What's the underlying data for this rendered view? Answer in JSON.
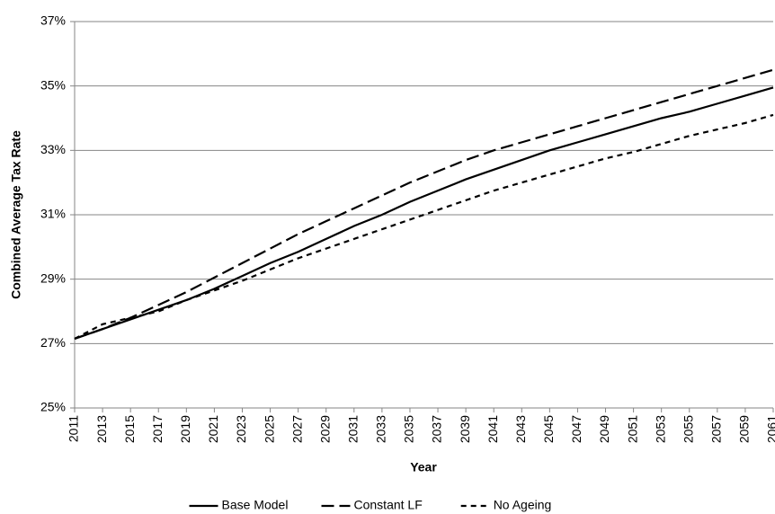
{
  "chart_data": {
    "type": "line",
    "x_label": "Year",
    "y_label": "Combined Average Tax Rate",
    "x": [
      2011,
      2013,
      2015,
      2017,
      2019,
      2021,
      2023,
      2025,
      2027,
      2029,
      2031,
      2033,
      2035,
      2037,
      2039,
      2041,
      2043,
      2045,
      2047,
      2049,
      2051,
      2053,
      2055,
      2057,
      2059,
      2061
    ],
    "xlim": [
      2011,
      2061
    ],
    "xticks": [
      2011,
      2013,
      2015,
      2017,
      2019,
      2021,
      2023,
      2025,
      2027,
      2029,
      2031,
      2033,
      2035,
      2037,
      2039,
      2041,
      2043,
      2045,
      2047,
      2049,
      2051,
      2053,
      2055,
      2057,
      2059,
      2061
    ],
    "ylim": [
      25,
      37
    ],
    "yticks": [
      {
        "value": 25,
        "label": "25%"
      },
      {
        "value": 27,
        "label": "27%"
      },
      {
        "value": 29,
        "label": "29%"
      },
      {
        "value": 31,
        "label": "31%"
      },
      {
        "value": 33,
        "label": "33%"
      },
      {
        "value": 35,
        "label": "35%"
      },
      {
        "value": 37,
        "label": "37%"
      }
    ],
    "grid": true,
    "legend": "bottom",
    "series": [
      {
        "name": "Base Model",
        "color": "#000000",
        "line_style": "solid",
        "values": [
          27.15,
          27.45,
          27.75,
          28.05,
          28.35,
          28.7,
          29.1,
          29.5,
          29.85,
          30.25,
          30.65,
          31.0,
          31.4,
          31.75,
          32.1,
          32.4,
          32.7,
          33.0,
          33.25,
          33.5,
          33.75,
          34.0,
          34.2,
          34.45,
          34.7,
          34.95
        ]
      },
      {
        "name": "Constant LF",
        "color": "#000000",
        "line_style": "dashed",
        "values": [
          27.15,
          27.45,
          27.8,
          28.2,
          28.6,
          29.05,
          29.5,
          29.95,
          30.4,
          30.8,
          31.2,
          31.6,
          32.0,
          32.35,
          32.7,
          33.0,
          33.25,
          33.5,
          33.75,
          34.0,
          34.25,
          34.5,
          34.75,
          35.0,
          35.25,
          35.5
        ]
      },
      {
        "name": "No Ageing",
        "color": "#000000",
        "line_style": "dotted",
        "values": [
          27.15,
          27.6,
          27.8,
          28.0,
          28.35,
          28.65,
          28.95,
          29.3,
          29.65,
          29.95,
          30.25,
          30.55,
          30.85,
          31.15,
          31.45,
          31.75,
          32.0,
          32.25,
          32.5,
          32.75,
          32.95,
          33.2,
          33.45,
          33.65,
          33.85,
          34.1
        ]
      }
    ]
  }
}
